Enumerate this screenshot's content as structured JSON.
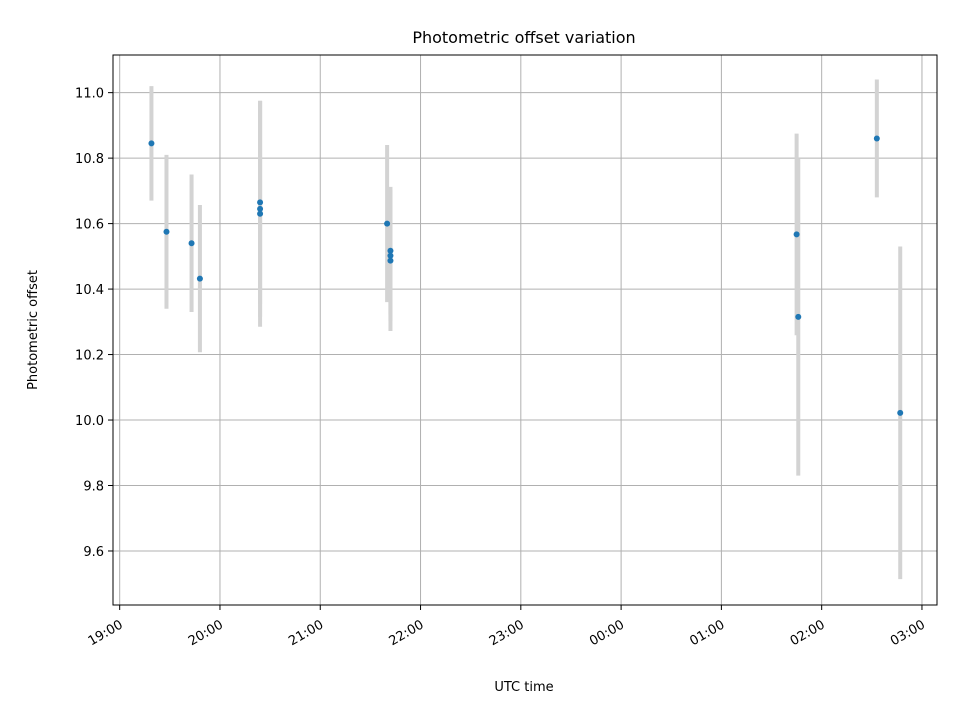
{
  "chart_data": {
    "type": "scatter",
    "title": "Photometric offset variation",
    "xlabel": "UTC time",
    "ylabel": "Photometric offset",
    "grid": true,
    "x_ticks": [
      "19:00",
      "20:00",
      "21:00",
      "22:00",
      "23:00",
      "00:00",
      "01:00",
      "02:00",
      "03:00"
    ],
    "y_ticks": [
      "9.6",
      "9.8",
      "10.0",
      "10.2",
      "10.4",
      "10.6",
      "10.8",
      "11.0"
    ],
    "xlim": [
      "18:56",
      "03:09"
    ],
    "ylim": [
      9.435,
      11.115
    ],
    "points": [
      {
        "time": "19:19",
        "y": 10.845,
        "err": 0.175
      },
      {
        "time": "19:28",
        "y": 10.575,
        "err": 0.235
      },
      {
        "time": "19:43",
        "y": 10.54,
        "err": 0.21
      },
      {
        "time": "19:48",
        "y": 10.432,
        "err": 0.225
      },
      {
        "time": "20:24",
        "y": 10.665,
        "err": 0.31
      },
      {
        "time": "20:24",
        "y": 10.645,
        "err": 0.33
      },
      {
        "time": "20:24",
        "y": 10.63,
        "err": 0.345
      },
      {
        "time": "21:40",
        "y": 10.6,
        "err": 0.24
      },
      {
        "time": "21:42",
        "y": 10.517,
        "err": 0.195
      },
      {
        "time": "21:42",
        "y": 10.502,
        "err": 0.2
      },
      {
        "time": "21:42",
        "y": 10.487,
        "err": 0.215
      },
      {
        "time": "01:45",
        "y": 10.567,
        "err": 0.308
      },
      {
        "time": "01:46",
        "y": 10.315,
        "err": 0.485
      },
      {
        "time": "02:33",
        "y": 10.86,
        "err": 0.18
      },
      {
        "time": "02:47",
        "y": 10.022,
        "err": 0.508
      }
    ]
  }
}
